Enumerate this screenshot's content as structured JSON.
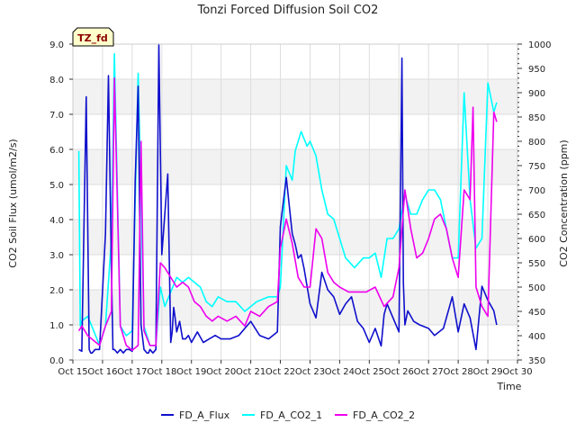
{
  "chart_data": {
    "type": "line",
    "title": "Tonzi Forced Diffusion Soil CO2",
    "site_badge": "TZ_fd",
    "xlabel": "Time",
    "ylabel": "CO2 Soil Flux (umol/m2/s)",
    "y2label": "CO2 Concentration (ppm)",
    "x_unit": "day of October",
    "xlim": [
      15,
      30
    ],
    "ylim": [
      0,
      9
    ],
    "y2lim": [
      350,
      1000
    ],
    "x_ticks": [
      {
        "value": 15,
        "label": "Oct 15"
      },
      {
        "value": 16,
        "label": "Oct 16"
      },
      {
        "value": 17,
        "label": "Oct 17"
      },
      {
        "value": 18,
        "label": "Oct 18"
      },
      {
        "value": 19,
        "label": "Oct 19"
      },
      {
        "value": 20,
        "label": "Oct 20"
      },
      {
        "value": 21,
        "label": "Oct 21"
      },
      {
        "value": 22,
        "label": "Oct 22"
      },
      {
        "value": 23,
        "label": "Oct 23"
      },
      {
        "value": 24,
        "label": "Oct 24"
      },
      {
        "value": 25,
        "label": "Oct 25"
      },
      {
        "value": 26,
        "label": "Oct 26"
      },
      {
        "value": 27,
        "label": "Oct 27"
      },
      {
        "value": 28,
        "label": "Oct 28"
      },
      {
        "value": 29,
        "label": "Oct 29"
      },
      {
        "value": 30,
        "label": "Oct 30"
      }
    ],
    "y_ticks": [
      "0.0",
      "1.0",
      "2.0",
      "3.0",
      "4.0",
      "5.0",
      "6.0",
      "7.0",
      "8.0",
      "9.0"
    ],
    "y2_ticks": [
      "350",
      "400",
      "450",
      "500",
      "550",
      "600",
      "650",
      "700",
      "750",
      "800",
      "850",
      "900",
      "950",
      "1000"
    ],
    "grid": true,
    "legend_position": "bottom",
    "series": [
      {
        "name": "FD_A_Flux",
        "axis": "left",
        "color": "#1010cc",
        "x": [
          15.2,
          15.3,
          15.45,
          15.55,
          15.6,
          15.65,
          15.75,
          15.9,
          16.1,
          16.2,
          16.3,
          16.35,
          16.4,
          16.5,
          16.6,
          16.7,
          16.8,
          16.9,
          17.0,
          17.1,
          17.2,
          17.3,
          17.4,
          17.5,
          17.55,
          17.6,
          17.7,
          17.8,
          17.9,
          18.0,
          18.2,
          18.3,
          18.35,
          18.4,
          18.45,
          18.5,
          18.6,
          18.7,
          18.8,
          18.9,
          19.0,
          19.2,
          19.4,
          19.6,
          19.8,
          20.0,
          20.3,
          20.6,
          21.0,
          21.3,
          21.6,
          21.9,
          22.0,
          22.2,
          22.4,
          22.5,
          22.6,
          22.7,
          22.8,
          22.9,
          23.0,
          23.2,
          23.4,
          23.6,
          23.8,
          24.0,
          24.2,
          24.4,
          24.6,
          24.8,
          25.0,
          25.2,
          25.4,
          25.5,
          25.6,
          25.8,
          26.0,
          26.1,
          26.15,
          26.2,
          26.3,
          26.5,
          26.7,
          27.0,
          27.2,
          27.5,
          27.8,
          28.0,
          28.2,
          28.4,
          28.6,
          28.8,
          29.0,
          29.2,
          29.3
        ],
        "y": [
          0.3,
          0.25,
          7.5,
          0.3,
          0.2,
          0.2,
          0.3,
          0.3,
          3.6,
          8.1,
          2.6,
          0.3,
          0.3,
          0.2,
          0.3,
          0.2,
          0.3,
          0.3,
          0.25,
          5.1,
          7.8,
          1.0,
          0.3,
          0.2,
          0.2,
          0.3,
          0.2,
          0.3,
          9.0,
          3.0,
          5.3,
          0.5,
          0.8,
          1.5,
          1.2,
          0.8,
          1.1,
          0.6,
          0.6,
          0.7,
          0.5,
          0.8,
          0.5,
          0.6,
          0.7,
          0.6,
          0.6,
          0.7,
          1.1,
          0.7,
          0.6,
          0.8,
          3.8,
          5.2,
          3.6,
          3.3,
          2.9,
          3.0,
          2.6,
          2.1,
          1.6,
          1.2,
          2.5,
          2.0,
          1.8,
          1.3,
          1.6,
          1.8,
          1.1,
          0.9,
          0.5,
          0.9,
          0.4,
          1.3,
          1.6,
          1.2,
          0.8,
          8.6,
          2.2,
          1.0,
          1.4,
          1.1,
          1.0,
          0.9,
          0.7,
          0.9,
          1.8,
          0.8,
          1.6,
          1.2,
          0.3,
          2.1,
          1.7,
          1.4,
          1.0
        ]
      },
      {
        "name": "FD_A_CO2_1",
        "axis": "right",
        "color": "#00ffff",
        "x": [
          15.2,
          15.25,
          15.3,
          15.5,
          15.7,
          15.9,
          16.1,
          16.3,
          16.4,
          16.6,
          16.8,
          17.0,
          17.2,
          17.4,
          17.6,
          17.8,
          17.95,
          18.1,
          18.3,
          18.5,
          18.7,
          18.9,
          19.1,
          19.3,
          19.5,
          19.7,
          19.9,
          20.2,
          20.5,
          20.8,
          21.2,
          21.6,
          21.9,
          22.0,
          22.2,
          22.4,
          22.5,
          22.7,
          22.9,
          23.0,
          23.2,
          23.4,
          23.6,
          23.8,
          24.0,
          24.2,
          24.5,
          24.8,
          25.0,
          25.2,
          25.4,
          25.6,
          25.8,
          26.0,
          26.2,
          26.4,
          26.6,
          26.8,
          27.0,
          27.2,
          27.4,
          27.6,
          27.8,
          28.0,
          28.2,
          28.4,
          28.6,
          28.8,
          29.0,
          29.2,
          29.3
        ],
        "y": [
          780,
          420,
          430,
          440,
          410,
          380,
          420,
          600,
          980,
          420,
          400,
          410,
          940,
          420,
          380,
          380,
          500,
          460,
          490,
          520,
          510,
          520,
          510,
          500,
          470,
          460,
          480,
          470,
          470,
          450,
          470,
          480,
          480,
          500,
          750,
          720,
          780,
          820,
          790,
          800,
          770,
          700,
          650,
          640,
          600,
          560,
          540,
          560,
          560,
          570,
          520,
          600,
          600,
          620,
          690,
          650,
          650,
          680,
          700,
          700,
          680,
          620,
          560,
          560,
          900,
          680,
          580,
          600,
          920,
          860,
          880
        ]
      },
      {
        "name": "FD_A_CO2_2",
        "axis": "right",
        "color": "#ee00ee",
        "x": [
          15.2,
          15.3,
          15.5,
          15.7,
          15.9,
          16.1,
          16.3,
          16.4,
          16.6,
          16.8,
          17.0,
          17.2,
          17.3,
          17.4,
          17.6,
          17.8,
          17.95,
          18.1,
          18.3,
          18.5,
          18.7,
          18.9,
          19.1,
          19.3,
          19.5,
          19.7,
          19.9,
          20.2,
          20.5,
          20.8,
          21.0,
          21.3,
          21.6,
          21.9,
          22.0,
          22.2,
          22.4,
          22.6,
          22.8,
          23.0,
          23.2,
          23.4,
          23.6,
          23.8,
          24.0,
          24.3,
          24.6,
          24.9,
          25.2,
          25.5,
          25.8,
          26.0,
          26.2,
          26.4,
          26.6,
          26.8,
          27.0,
          27.2,
          27.4,
          27.6,
          27.8,
          28.0,
          28.2,
          28.4,
          28.5,
          28.6,
          28.8,
          29.0,
          29.2,
          29.3
        ],
        "y": [
          410,
          420,
          400,
          390,
          380,
          420,
          450,
          930,
          420,
          380,
          370,
          380,
          800,
          410,
          380,
          380,
          550,
          540,
          520,
          500,
          510,
          500,
          470,
          460,
          440,
          430,
          440,
          430,
          440,
          420,
          450,
          440,
          460,
          470,
          580,
          640,
          590,
          520,
          500,
          500,
          620,
          600,
          530,
          510,
          500,
          490,
          490,
          490,
          500,
          460,
          480,
          540,
          700,
          620,
          560,
          570,
          600,
          640,
          650,
          620,
          560,
          520,
          700,
          680,
          870,
          500,
          460,
          440,
          860,
          840
        ]
      }
    ]
  }
}
